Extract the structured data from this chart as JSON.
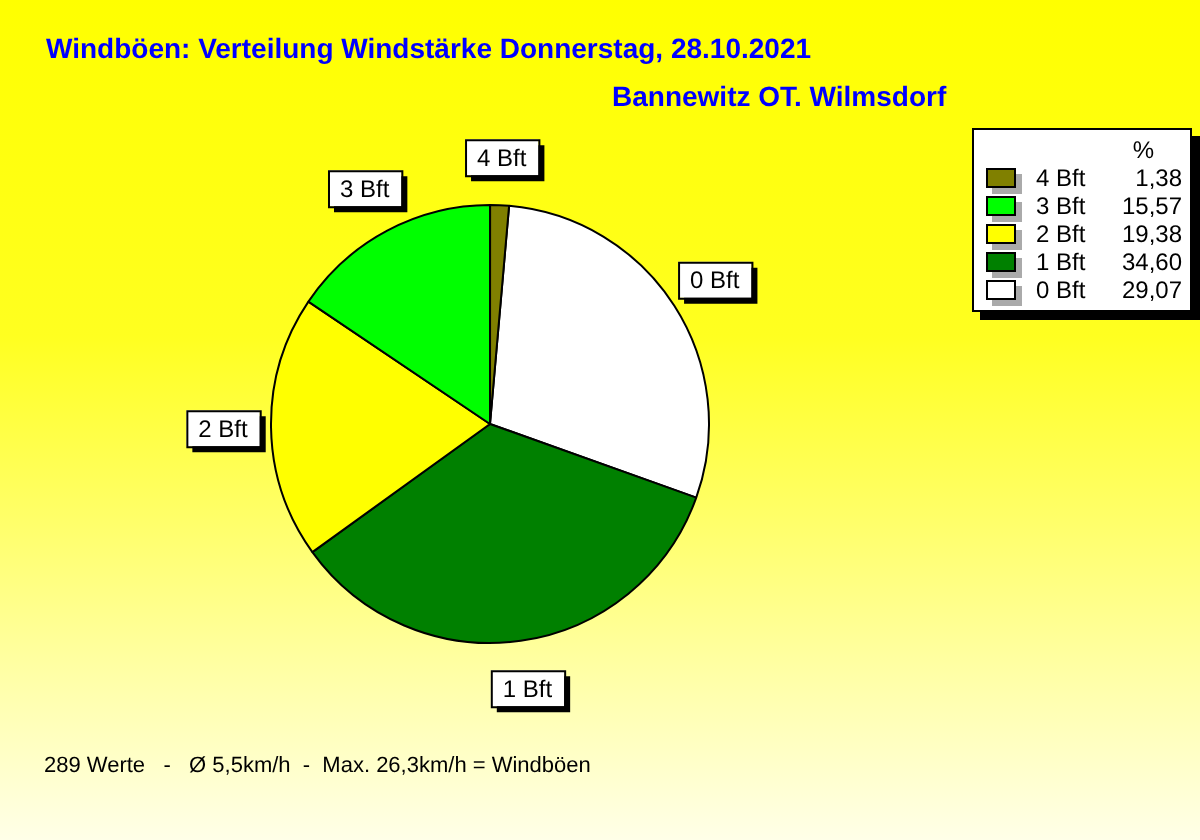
{
  "chart_data": {
    "type": "pie",
    "title": "Windböen: Verteilung Windstärke  Donnerstag, 28.10.2021",
    "subtitle": "Bannewitz OT. Wilmsdorf",
    "categories": [
      "4 Bft",
      "3 Bft",
      "2 Bft",
      "1 Bft",
      "0 Bft"
    ],
    "values": [
      1.38,
      15.57,
      19.38,
      34.6,
      29.07
    ],
    "value_labels": [
      "1,38",
      "15,57",
      "19,38",
      "34,60",
      "29,07"
    ],
    "colors": [
      "#808000",
      "#00ff00",
      "#ffff00",
      "#008000",
      "#ffffff"
    ],
    "legend": "top right",
    "legend_title": "%",
    "annotations": [
      "289 Werte   -   Ø 5,5km/h  -  Max. 26,3km/h = Windböen"
    ]
  }
}
